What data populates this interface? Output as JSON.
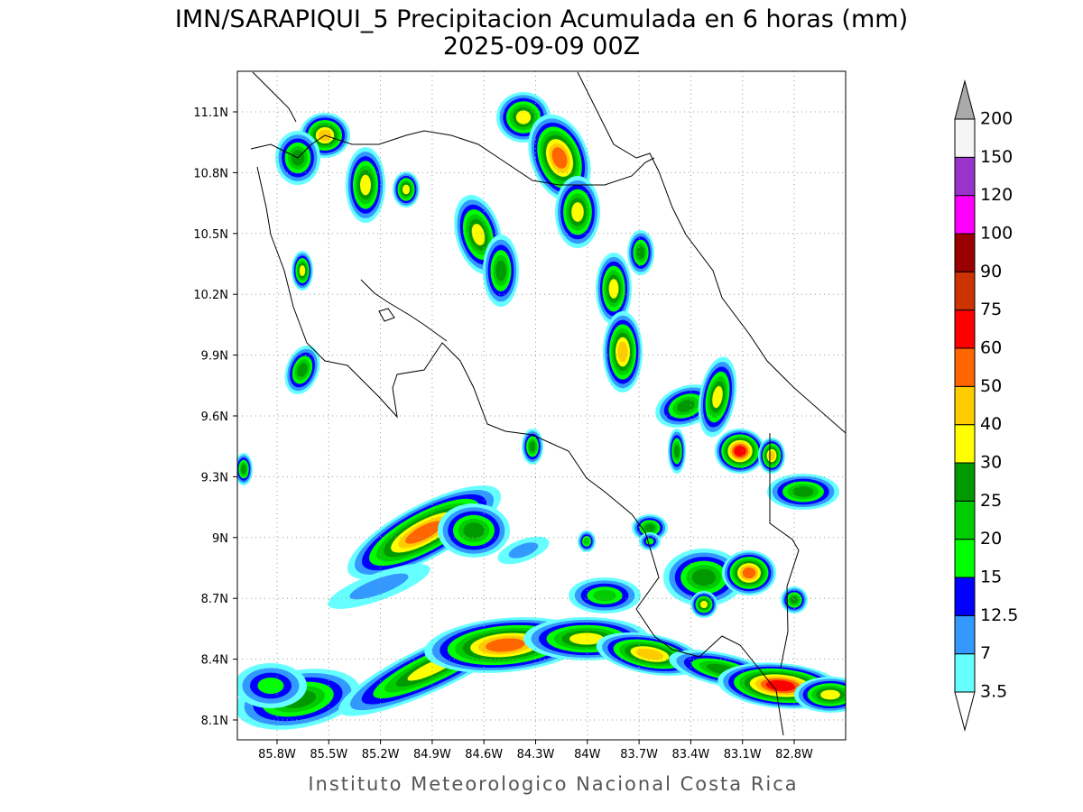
{
  "title": "IMN/SARAPIQUI_5 Precipitacion Acumulada en 6 horas (mm)",
  "subtitle": "2025-09-09 00Z",
  "map": {
    "lat_ticks": [
      "11.1N",
      "10.8N",
      "10.5N",
      "10.2N",
      "9.9N",
      "9.6N",
      "9.3N",
      "9N",
      "8.7N",
      "8.4N",
      "8.1N"
    ],
    "lon_ticks": [
      "85.8W",
      "85.5W",
      "85.2W",
      "84.9W",
      "84.6W",
      "84.3W",
      "84W",
      "83.7W",
      "83.4W",
      "83.1W",
      "82.8W"
    ]
  },
  "colorbar": {
    "levels": [
      3.5,
      7,
      12.5,
      15,
      20,
      25,
      30,
      40,
      50,
      60,
      75,
      90,
      100,
      120,
      150,
      200
    ],
    "colors": [
      "#66ffff",
      "#3399ff",
      "#0000ff",
      "#00ff00",
      "#00cc00",
      "#009900",
      "#ffff00",
      "#ffcc00",
      "#ff6600",
      "#ff0000",
      "#cc3300",
      "#990000",
      "#ff00ff",
      "#9933cc",
      "#f5f5f5"
    ],
    "under_color": "#ffffff",
    "over_color": "#aaaaaa"
  },
  "footer": "Instituto Meteorologico Nacional Costa Rica"
}
